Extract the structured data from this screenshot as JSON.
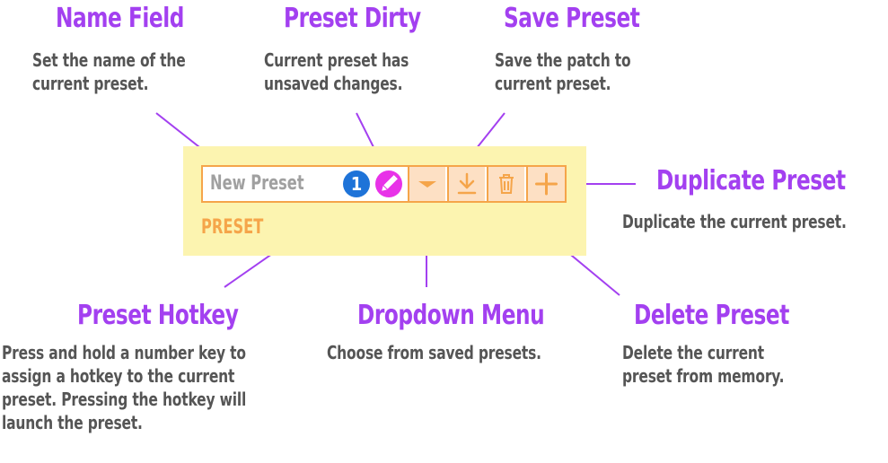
{
  "widget": {
    "name_field_value": "New Preset",
    "hotkey_number": "1",
    "section_label": "PRESET"
  },
  "callouts": {
    "name_field": {
      "title": "Name Field",
      "description": "Set the name of the\ncurrent preset."
    },
    "preset_dirty": {
      "title": "Preset Dirty",
      "description": "Current preset has\nunsaved changes."
    },
    "save_preset": {
      "title": "Save Preset",
      "description": "Save the patch to\ncurrent preset."
    },
    "duplicate_preset": {
      "title": "Duplicate Preset",
      "description": "Duplicate the current preset."
    },
    "preset_hotkey": {
      "title": "Preset Hotkey",
      "description": "Press and hold a number key to\nassign a hotkey to the current\npreset. Pressing the hotkey will\nlaunch the preset."
    },
    "dropdown_menu": {
      "title": "Dropdown Menu",
      "description": "Choose from saved presets."
    },
    "delete_preset": {
      "title": "Delete Preset",
      "description": "Delete the current\npreset from memory."
    }
  },
  "icons": {
    "dirty": "pencil-icon",
    "dropdown": "caret-down-icon",
    "save": "download-icon",
    "delete": "trash-icon",
    "duplicate": "plus-icon"
  },
  "colors": {
    "title": "#a340f0",
    "description": "#555555",
    "panel_background": "#fcf4b0",
    "widget_border": "#f5a54a",
    "button_background": "#fde0c4",
    "hotkey_badge": "#1e73d8",
    "dirty_badge": "#e832e8",
    "leader_lines": "#a340f0"
  }
}
